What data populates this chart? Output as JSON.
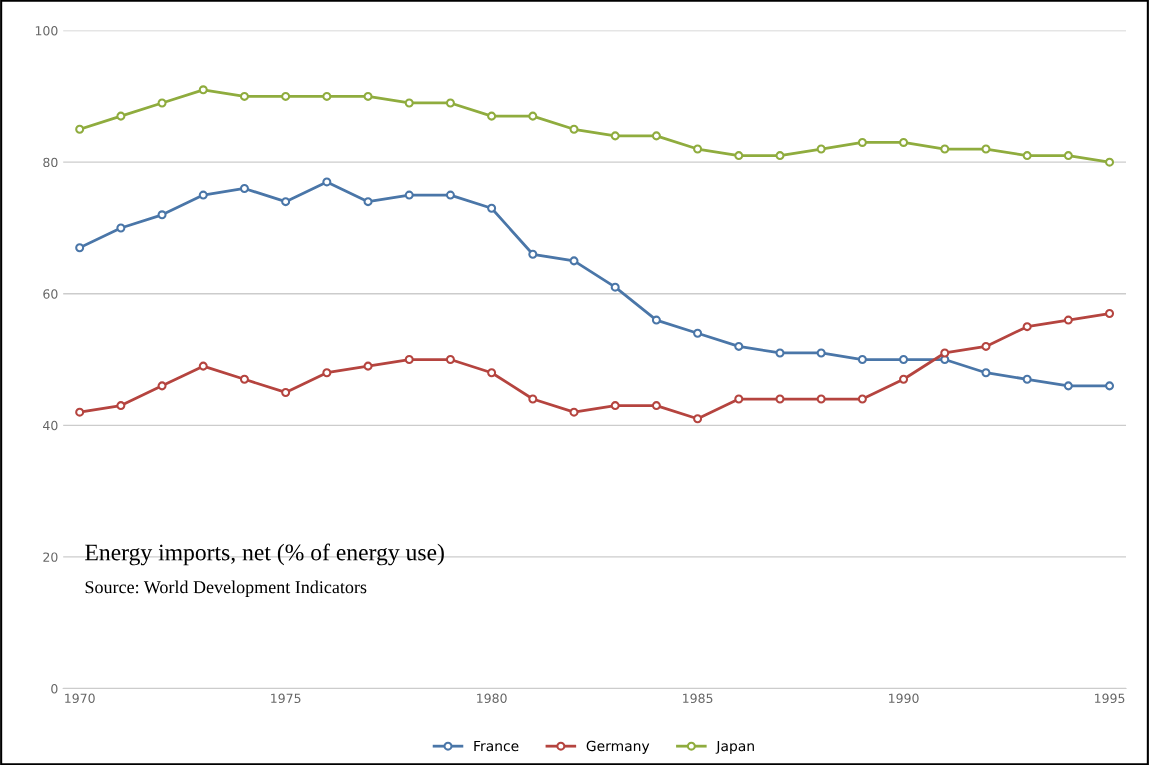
{
  "chart_data": {
    "type": "line",
    "title": "Energy imports, net (% of energy use)",
    "annotations": [
      "Source: World Development Indicators"
    ],
    "x": [
      1970,
      1971,
      1972,
      1973,
      1974,
      1975,
      1976,
      1977,
      1978,
      1979,
      1980,
      1981,
      1982,
      1983,
      1984,
      1985,
      1986,
      1987,
      1988,
      1989,
      1990,
      1991,
      1992,
      1993,
      1994,
      1995
    ],
    "series": [
      {
        "name": "France",
        "color": "#4a76a8",
        "values": [
          67,
          70,
          72,
          75,
          76,
          74,
          77,
          74,
          75,
          75,
          73,
          66,
          65,
          61,
          56,
          54,
          52,
          51,
          51,
          50,
          50,
          50,
          48,
          47,
          46,
          46
        ]
      },
      {
        "name": "Germany",
        "color": "#b5443f",
        "values": [
          42,
          43,
          46,
          49,
          47,
          45,
          48,
          49,
          50,
          50,
          48,
          44,
          42,
          43,
          43,
          41,
          44,
          44,
          44,
          44,
          47,
          51,
          52,
          55,
          56,
          57
        ]
      },
      {
        "name": "Japan",
        "color": "#8fac3e",
        "values": [
          85,
          87,
          89,
          91,
          90,
          90,
          90,
          90,
          89,
          89,
          87,
          87,
          85,
          84,
          84,
          82,
          81,
          81,
          82,
          83,
          83,
          82,
          82,
          81,
          81,
          80
        ]
      }
    ],
    "xlim": [
      1969.6,
      1995.4
    ],
    "xticks": [
      1970,
      1975,
      1980,
      1985,
      1990,
      1995
    ],
    "ylim": [
      0,
      100
    ],
    "yticks": [
      0,
      20,
      40,
      60,
      80,
      100
    ],
    "grid": "y",
    "legend": "bottom",
    "marker": "circle",
    "line_style": "solid"
  }
}
